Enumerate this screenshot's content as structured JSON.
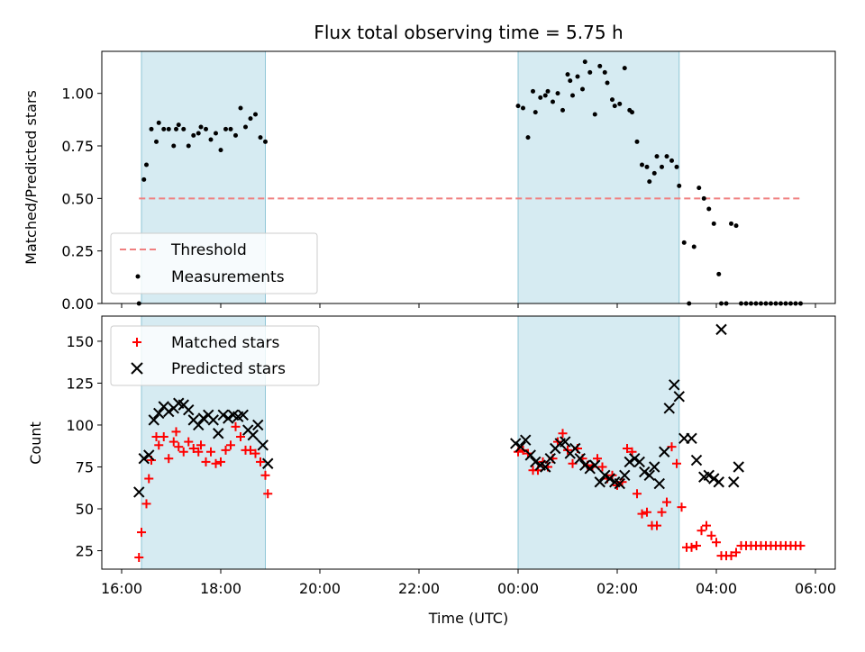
{
  "title": "Flux total observing time = 5.75 h",
  "xlabel": "Time (UTC)",
  "chart_data": [
    {
      "type": "scatter",
      "panel": "top",
      "ylabel": "Matched/Predicted stars",
      "ylim": [
        0,
        1.2
      ],
      "yticks": [
        "0.00",
        "0.25",
        "0.50",
        "0.75",
        "1.00"
      ],
      "xlim": [
        15.6,
        30.4
      ],
      "xticks": [
        16,
        18,
        20,
        22,
        24,
        26,
        28,
        30
      ],
      "xtick_labels": [
        "16:00",
        "18:00",
        "20:00",
        "22:00",
        "00:00",
        "02:00",
        "04:00",
        "06:00"
      ],
      "shaded_regions": [
        [
          16.4,
          18.9
        ],
        [
          24.0,
          27.25
        ]
      ],
      "legend": {
        "placement": "lower-left",
        "entries": [
          "Threshold",
          "Measurements"
        ]
      },
      "series": [
        {
          "name": "Threshold",
          "style": "dashed-line",
          "color": "#f08080",
          "x": [
            16.35,
            29.75
          ],
          "y": [
            0.5,
            0.5
          ]
        },
        {
          "name": "Measurements",
          "style": "dot",
          "color": "#000000",
          "x": [
            16.35,
            16.45,
            16.5,
            16.6,
            16.7,
            16.75,
            16.85,
            16.95,
            17.05,
            17.1,
            17.15,
            17.25,
            17.35,
            17.45,
            17.55,
            17.6,
            17.7,
            17.8,
            17.9,
            18.0,
            18.1,
            18.2,
            18.3,
            18.4,
            18.5,
            18.6,
            18.7,
            18.8,
            18.9,
            24.0,
            24.1,
            24.2,
            24.3,
            24.35,
            24.45,
            24.55,
            24.6,
            24.7,
            24.8,
            24.9,
            25.0,
            25.05,
            25.1,
            25.2,
            25.3,
            25.35,
            25.45,
            25.55,
            25.65,
            25.75,
            25.8,
            25.9,
            25.95,
            26.05,
            26.15,
            26.25,
            26.3,
            26.4,
            26.5,
            26.6,
            26.65,
            26.75,
            26.8,
            26.9,
            27.0,
            27.1,
            27.2,
            27.25,
            27.35,
            27.45,
            27.55,
            27.65,
            27.75,
            27.85,
            27.95,
            28.05,
            28.1,
            28.2,
            28.3,
            28.4,
            28.5,
            28.6,
            28.7,
            28.8,
            28.9,
            29.0,
            29.1,
            29.2,
            29.3,
            29.4,
            29.5,
            29.6,
            29.7
          ],
          "y": [
            0.0,
            0.59,
            0.66,
            0.83,
            0.77,
            0.86,
            0.83,
            0.83,
            0.75,
            0.83,
            0.85,
            0.83,
            0.75,
            0.8,
            0.81,
            0.84,
            0.83,
            0.78,
            0.81,
            0.73,
            0.83,
            0.83,
            0.8,
            0.93,
            0.84,
            0.88,
            0.9,
            0.79,
            0.77,
            0.94,
            0.93,
            0.79,
            1.01,
            0.91,
            0.98,
            0.99,
            1.01,
            0.96,
            1.0,
            0.92,
            1.09,
            1.06,
            0.99,
            1.08,
            1.02,
            1.15,
            1.1,
            0.9,
            1.13,
            1.1,
            1.05,
            0.97,
            0.94,
            0.95,
            1.12,
            0.92,
            0.91,
            0.77,
            0.66,
            0.65,
            0.58,
            0.62,
            0.7,
            0.65,
            0.7,
            0.68,
            0.65,
            0.56,
            0.29,
            0.0,
            0.27,
            0.55,
            0.5,
            0.45,
            0.38,
            0.14,
            0.0,
            0.0,
            0.38,
            0.37,
            0.0,
            0.0,
            0.0,
            0.0,
            0.0,
            0.0,
            0.0,
            0.0,
            0.0,
            0.0,
            0.0,
            0.0,
            0.0
          ]
        }
      ]
    },
    {
      "type": "scatter",
      "panel": "bottom",
      "ylabel": "Count",
      "ylim": [
        14,
        165
      ],
      "yticks": [
        "25",
        "50",
        "75",
        "100",
        "125",
        "150"
      ],
      "xlim": [
        15.6,
        30.4
      ],
      "legend": {
        "placement": "upper-left",
        "entries": [
          "Matched stars",
          "Predicted stars"
        ]
      },
      "series": [
        {
          "name": "Matched stars",
          "marker": "plus",
          "color": "#ff0000",
          "x": [
            16.35,
            16.4,
            16.5,
            16.55,
            16.6,
            16.7,
            16.75,
            16.85,
            16.95,
            17.05,
            17.1,
            17.15,
            17.25,
            17.35,
            17.45,
            17.55,
            17.6,
            17.7,
            17.8,
            17.9,
            18.0,
            18.1,
            18.2,
            18.3,
            18.4,
            18.5,
            18.6,
            18.7,
            18.8,
            18.9,
            18.95,
            24.0,
            24.1,
            24.2,
            24.3,
            24.4,
            24.5,
            24.6,
            24.7,
            24.8,
            24.9,
            25.0,
            25.1,
            25.2,
            25.3,
            25.4,
            25.5,
            25.6,
            25.7,
            25.8,
            25.9,
            26.0,
            26.1,
            26.2,
            26.3,
            26.4,
            26.5,
            26.6,
            26.7,
            26.8,
            26.9,
            27.0,
            27.1,
            27.2,
            27.3,
            27.4,
            27.5,
            27.6,
            27.7,
            27.8,
            27.9,
            28.0,
            28.1,
            28.2,
            28.3,
            28.4,
            28.5,
            28.6,
            28.7,
            28.8,
            28.9,
            29.0,
            29.1,
            29.2,
            29.3,
            29.4,
            29.5,
            29.6,
            29.7
          ],
          "y": [
            21,
            36,
            53,
            68,
            79,
            93,
            88,
            93,
            80,
            90,
            96,
            87,
            84,
            90,
            86,
            84,
            88,
            78,
            84,
            77,
            78,
            85,
            88,
            99,
            93,
            85,
            85,
            83,
            78,
            70,
            59,
            84,
            85,
            83,
            73,
            73,
            78,
            75,
            80,
            90,
            95,
            85,
            77,
            86,
            80,
            76,
            75,
            80,
            75,
            68,
            70,
            64,
            66,
            86,
            84,
            59,
            47,
            48,
            40,
            40,
            48,
            54,
            87,
            77,
            51,
            27,
            27,
            28,
            37,
            40,
            34,
            30,
            22,
            22,
            22,
            24,
            28,
            28,
            28,
            28,
            28,
            28,
            28,
            28,
            28,
            28,
            28,
            28,
            28
          ]
        },
        {
          "name": "Predicted stars",
          "marker": "x",
          "color": "#000000",
          "x": [
            16.35,
            16.45,
            16.55,
            16.65,
            16.75,
            16.85,
            16.95,
            17.05,
            17.15,
            17.25,
            17.35,
            17.45,
            17.55,
            17.65,
            17.75,
            17.85,
            17.95,
            18.05,
            18.15,
            18.25,
            18.35,
            18.45,
            18.55,
            18.65,
            18.75,
            18.85,
            18.95,
            23.95,
            24.05,
            24.15,
            24.25,
            24.35,
            24.45,
            24.55,
            24.65,
            24.75,
            24.85,
            24.95,
            25.05,
            25.15,
            25.25,
            25.35,
            25.45,
            25.55,
            25.65,
            25.75,
            25.85,
            25.95,
            26.05,
            26.15,
            26.25,
            26.35,
            26.45,
            26.55,
            26.65,
            26.75,
            26.85,
            26.95,
            27.05,
            27.15,
            27.25,
            27.35,
            27.5,
            27.6,
            27.75,
            27.85,
            27.95,
            28.05,
            28.1,
            28.35,
            28.45
          ],
          "y": [
            60,
            80,
            82,
            103,
            107,
            111,
            108,
            110,
            113,
            112,
            109,
            103,
            100,
            104,
            106,
            103,
            95,
            106,
            104,
            106,
            105,
            106,
            97,
            94,
            100,
            88,
            77,
            89,
            87,
            91,
            82,
            78,
            76,
            75,
            80,
            86,
            89,
            90,
            83,
            86,
            80,
            76,
            74,
            76,
            66,
            70,
            68,
            66,
            65,
            70,
            78,
            80,
            78,
            72,
            70,
            75,
            65,
            84,
            110,
            124,
            117,
            92,
            92,
            79,
            69,
            70,
            68,
            66,
            157,
            66,
            75
          ]
        }
      ]
    }
  ]
}
